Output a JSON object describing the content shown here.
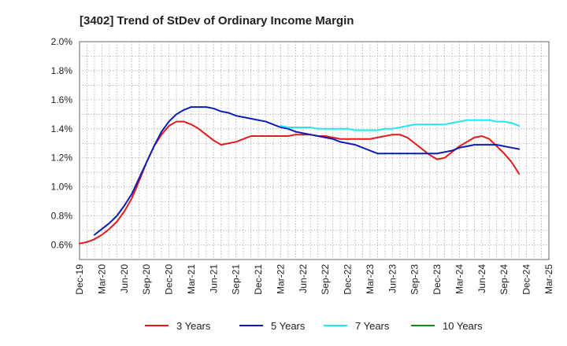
{
  "chart_data": {
    "type": "line",
    "title": "[3402]  Trend of StDev of Ordinary Income Margin",
    "xlabel": "",
    "ylabel": "",
    "x_ticks": [
      "Dec-19",
      "Mar-20",
      "Jun-20",
      "Sep-20",
      "Dec-20",
      "Mar-21",
      "Jun-21",
      "Sep-21",
      "Dec-21",
      "Mar-22",
      "Jun-22",
      "Sep-22",
      "Dec-22",
      "Mar-23",
      "Jun-23",
      "Sep-23",
      "Dec-23",
      "Mar-24",
      "Jun-24",
      "Sep-24",
      "Dec-24",
      "Mar-25"
    ],
    "y_ticks": [
      "0.6%",
      "0.8%",
      "1.0%",
      "1.2%",
      "1.4%",
      "1.6%",
      "1.8%",
      "2.0%"
    ],
    "ylim": [
      0.5,
      2.0
    ],
    "grid": true,
    "legend_position": "bottom",
    "series": [
      {
        "name": "3 Years",
        "color": "#e31a1c",
        "points": [
          [
            "Dec-19",
            0.61
          ],
          [
            "Jan-20",
            0.62
          ],
          [
            "Feb-20",
            0.64
          ],
          [
            "Mar-20",
            0.67
          ],
          [
            "Apr-20",
            0.71
          ],
          [
            "May-20",
            0.76
          ],
          [
            "Jun-20",
            0.83
          ],
          [
            "Jul-20",
            0.92
          ],
          [
            "Aug-20",
            1.04
          ],
          [
            "Sep-20",
            1.17
          ],
          [
            "Oct-20",
            1.28
          ],
          [
            "Nov-20",
            1.36
          ],
          [
            "Dec-20",
            1.42
          ],
          [
            "Jan-21",
            1.45
          ],
          [
            "Feb-21",
            1.45
          ],
          [
            "Mar-21",
            1.43
          ],
          [
            "Apr-21",
            1.4
          ],
          [
            "May-21",
            1.36
          ],
          [
            "Jun-21",
            1.32
          ],
          [
            "Jul-21",
            1.29
          ],
          [
            "Aug-21",
            1.3
          ],
          [
            "Sep-21",
            1.31
          ],
          [
            "Oct-21",
            1.33
          ],
          [
            "Nov-21",
            1.35
          ],
          [
            "Dec-21",
            1.35
          ],
          [
            "Jan-22",
            1.35
          ],
          [
            "Feb-22",
            1.35
          ],
          [
            "Mar-22",
            1.35
          ],
          [
            "Apr-22",
            1.35
          ],
          [
            "May-22",
            1.36
          ],
          [
            "Jun-22",
            1.36
          ],
          [
            "Jul-22",
            1.36
          ],
          [
            "Aug-22",
            1.35
          ],
          [
            "Sep-22",
            1.35
          ],
          [
            "Oct-22",
            1.34
          ],
          [
            "Nov-22",
            1.33
          ],
          [
            "Dec-22",
            1.33
          ],
          [
            "Jan-23",
            1.33
          ],
          [
            "Feb-23",
            1.33
          ],
          [
            "Mar-23",
            1.33
          ],
          [
            "Apr-23",
            1.34
          ],
          [
            "May-23",
            1.35
          ],
          [
            "Jun-23",
            1.36
          ],
          [
            "Jul-23",
            1.36
          ],
          [
            "Aug-23",
            1.34
          ],
          [
            "Sep-23",
            1.3
          ],
          [
            "Oct-23",
            1.26
          ],
          [
            "Nov-23",
            1.22
          ],
          [
            "Dec-23",
            1.19
          ],
          [
            "Jan-24",
            1.2
          ],
          [
            "Feb-24",
            1.24
          ],
          [
            "Mar-24",
            1.28
          ],
          [
            "Apr-24",
            1.31
          ],
          [
            "May-24",
            1.34
          ],
          [
            "Jun-24",
            1.35
          ],
          [
            "Jul-24",
            1.33
          ],
          [
            "Aug-24",
            1.28
          ],
          [
            "Sep-24",
            1.23
          ],
          [
            "Oct-24",
            1.17
          ],
          [
            "Nov-24",
            1.09
          ]
        ]
      },
      {
        "name": "5 Years",
        "color": "#0a1eb4",
        "points": [
          [
            "Feb-20",
            0.67
          ],
          [
            "Mar-20",
            0.71
          ],
          [
            "Apr-20",
            0.75
          ],
          [
            "May-20",
            0.8
          ],
          [
            "Jun-20",
            0.87
          ],
          [
            "Jul-20",
            0.95
          ],
          [
            "Aug-20",
            1.06
          ],
          [
            "Sep-20",
            1.17
          ],
          [
            "Oct-20",
            1.28
          ],
          [
            "Nov-20",
            1.38
          ],
          [
            "Dec-20",
            1.45
          ],
          [
            "Jan-21",
            1.5
          ],
          [
            "Feb-21",
            1.53
          ],
          [
            "Mar-21",
            1.55
          ],
          [
            "Apr-21",
            1.55
          ],
          [
            "May-21",
            1.55
          ],
          [
            "Jun-21",
            1.54
          ],
          [
            "Jul-21",
            1.52
          ],
          [
            "Aug-21",
            1.51
          ],
          [
            "Sep-21",
            1.49
          ],
          [
            "Oct-21",
            1.48
          ],
          [
            "Nov-21",
            1.47
          ],
          [
            "Dec-21",
            1.46
          ],
          [
            "Jan-22",
            1.45
          ],
          [
            "Feb-22",
            1.43
          ],
          [
            "Mar-22",
            1.41
          ],
          [
            "Apr-22",
            1.4
          ],
          [
            "May-22",
            1.38
          ],
          [
            "Jun-22",
            1.37
          ],
          [
            "Jul-22",
            1.36
          ],
          [
            "Aug-22",
            1.35
          ],
          [
            "Sep-22",
            1.34
          ],
          [
            "Oct-22",
            1.33
          ],
          [
            "Nov-22",
            1.31
          ],
          [
            "Dec-22",
            1.3
          ],
          [
            "Jan-23",
            1.29
          ],
          [
            "Feb-23",
            1.27
          ],
          [
            "Mar-23",
            1.25
          ],
          [
            "Apr-23",
            1.23
          ],
          [
            "May-23",
            1.23
          ],
          [
            "Jun-23",
            1.23
          ],
          [
            "Jul-23",
            1.23
          ],
          [
            "Aug-23",
            1.23
          ],
          [
            "Sep-23",
            1.23
          ],
          [
            "Oct-23",
            1.23
          ],
          [
            "Nov-23",
            1.23
          ],
          [
            "Dec-23",
            1.23
          ],
          [
            "Jan-24",
            1.24
          ],
          [
            "Feb-24",
            1.25
          ],
          [
            "Mar-24",
            1.27
          ],
          [
            "Apr-24",
            1.28
          ],
          [
            "May-24",
            1.29
          ],
          [
            "Jun-24",
            1.29
          ],
          [
            "Jul-24",
            1.29
          ],
          [
            "Aug-24",
            1.29
          ],
          [
            "Sep-24",
            1.28
          ],
          [
            "Oct-24",
            1.27
          ],
          [
            "Nov-24",
            1.26
          ]
        ]
      },
      {
        "name": "7 Years",
        "color": "#22e5ef",
        "points": [
          [
            "Mar-22",
            1.42
          ],
          [
            "Apr-22",
            1.41
          ],
          [
            "May-22",
            1.41
          ],
          [
            "Jun-22",
            1.41
          ],
          [
            "Jul-22",
            1.41
          ],
          [
            "Aug-22",
            1.4
          ],
          [
            "Sep-22",
            1.4
          ],
          [
            "Oct-22",
            1.4
          ],
          [
            "Nov-22",
            1.4
          ],
          [
            "Dec-22",
            1.4
          ],
          [
            "Jan-23",
            1.39
          ],
          [
            "Feb-23",
            1.39
          ],
          [
            "Mar-23",
            1.39
          ],
          [
            "Apr-23",
            1.39
          ],
          [
            "May-23",
            1.4
          ],
          [
            "Jun-23",
            1.4
          ],
          [
            "Jul-23",
            1.41
          ],
          [
            "Aug-23",
            1.42
          ],
          [
            "Sep-23",
            1.43
          ],
          [
            "Oct-23",
            1.43
          ],
          [
            "Nov-23",
            1.43
          ],
          [
            "Dec-23",
            1.43
          ],
          [
            "Jan-24",
            1.43
          ],
          [
            "Feb-24",
            1.44
          ],
          [
            "Mar-24",
            1.45
          ],
          [
            "Apr-24",
            1.46
          ],
          [
            "May-24",
            1.46
          ],
          [
            "Jun-24",
            1.46
          ],
          [
            "Jul-24",
            1.46
          ],
          [
            "Aug-24",
            1.45
          ],
          [
            "Sep-24",
            1.45
          ],
          [
            "Oct-24",
            1.44
          ],
          [
            "Nov-24",
            1.42
          ]
        ]
      },
      {
        "name": "10 Years",
        "color": "#1a8a1a",
        "points": []
      }
    ]
  }
}
